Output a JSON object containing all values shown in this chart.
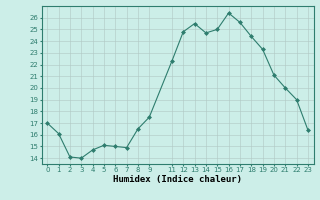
{
  "x": [
    0,
    1,
    2,
    3,
    4,
    5,
    6,
    7,
    8,
    9,
    11,
    12,
    13,
    14,
    15,
    16,
    17,
    18,
    19,
    20,
    21,
    22,
    23
  ],
  "y": [
    17,
    16.1,
    14.1,
    14.0,
    14.7,
    15.1,
    15.0,
    14.9,
    16.5,
    17.5,
    22.3,
    24.8,
    25.5,
    24.7,
    25.0,
    26.4,
    25.6,
    24.4,
    23.3,
    21.1,
    20.0,
    19.0,
    16.4
  ],
  "xlabel": "Humidex (Indice chaleur)",
  "xlim": [
    -0.5,
    23.5
  ],
  "ylim": [
    13.5,
    27.0
  ],
  "yticks": [
    14,
    15,
    16,
    17,
    18,
    19,
    20,
    21,
    22,
    23,
    24,
    25,
    26
  ],
  "xticks": [
    0,
    1,
    2,
    3,
    4,
    5,
    6,
    7,
    8,
    9,
    11,
    12,
    13,
    14,
    15,
    16,
    17,
    18,
    19,
    20,
    21,
    22,
    23
  ],
  "line_color": "#2e7d6e",
  "marker": "D",
  "marker_size": 2.0,
  "bg_color": "#cceee8",
  "grid_color": "#b0c8c4",
  "fig_bg": "#cceee8",
  "tick_fontsize": 5.0,
  "xlabel_fontsize": 6.5
}
